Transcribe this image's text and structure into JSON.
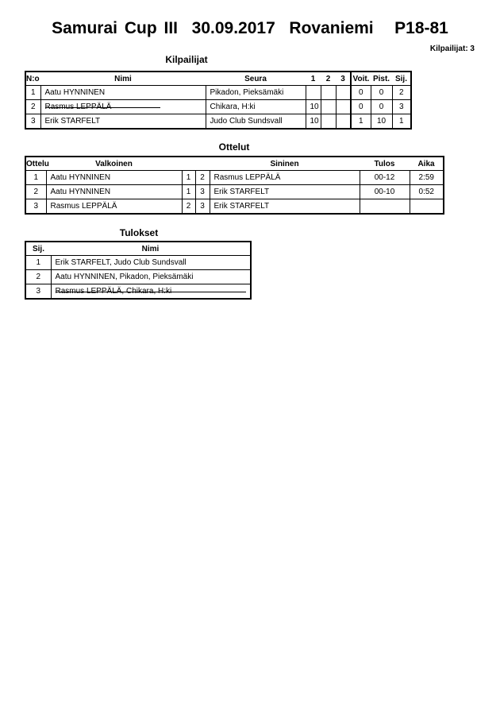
{
  "title": "Samurai Cup III  30.09.2017  Rovaniemi   P18-81",
  "competitor_count": "Kilpailijat: 3",
  "competitors": {
    "caption": "Kilpailijat",
    "headers": [
      "N:o",
      "Nimi",
      "Seura",
      "1",
      "2",
      "3",
      "Voit.",
      "Pist.",
      "Sij."
    ],
    "rows": [
      {
        "no": "1",
        "name": "Aatu HYNNINEN",
        "club": "Pikadon, Pieksämäki",
        "s1": "",
        "s2": "",
        "s3": "",
        "wins": "0",
        "points": "0",
        "place": "2",
        "struck": false
      },
      {
        "no": "2",
        "name": "Rasmus LEPPÄLÄ",
        "club": "Chikara, H:ki",
        "s1": "10",
        "s2": "",
        "s3": "",
        "wins": "0",
        "points": "0",
        "place": "3",
        "struck": true
      },
      {
        "no": "3",
        "name": "Erik STARFELT",
        "club": "Judo Club Sundsvall",
        "s1": "10",
        "s2": "",
        "s3": "",
        "wins": "1",
        "points": "10",
        "place": "1",
        "struck": false
      }
    ]
  },
  "matches": {
    "caption": "Ottelut",
    "headers": [
      "Ottelu",
      "Valkoinen",
      "Sininen",
      "Tulos",
      "Aika"
    ],
    "rows": [
      {
        "no": "1",
        "white": "Aatu HYNNINEN",
        "wn": "1",
        "bn": "2",
        "blue": "Rasmus LEPPÄLÄ",
        "result": "00-12",
        "time": "2:59"
      },
      {
        "no": "2",
        "white": "Aatu HYNNINEN",
        "wn": "1",
        "bn": "3",
        "blue": "Erik STARFELT",
        "result": "00-10",
        "time": "0:52"
      },
      {
        "no": "3",
        "white": "Rasmus LEPPÄLÄ",
        "wn": "2",
        "bn": "3",
        "blue": "Erik STARFELT",
        "result": "",
        "time": ""
      }
    ]
  },
  "results": {
    "caption": "Tulokset",
    "headers": [
      "Sij.",
      "Nimi"
    ],
    "rows": [
      {
        "place": "1",
        "name": "Erik STARFELT, Judo Club Sundsvall",
        "struck": false
      },
      {
        "place": "2",
        "name": "Aatu HYNNINEN, Pikadon, Pieksämäki",
        "struck": false
      },
      {
        "place": "3",
        "name": "Rasmus LEPPÄLÄ, Chikara, H:ki",
        "struck": true
      }
    ]
  }
}
